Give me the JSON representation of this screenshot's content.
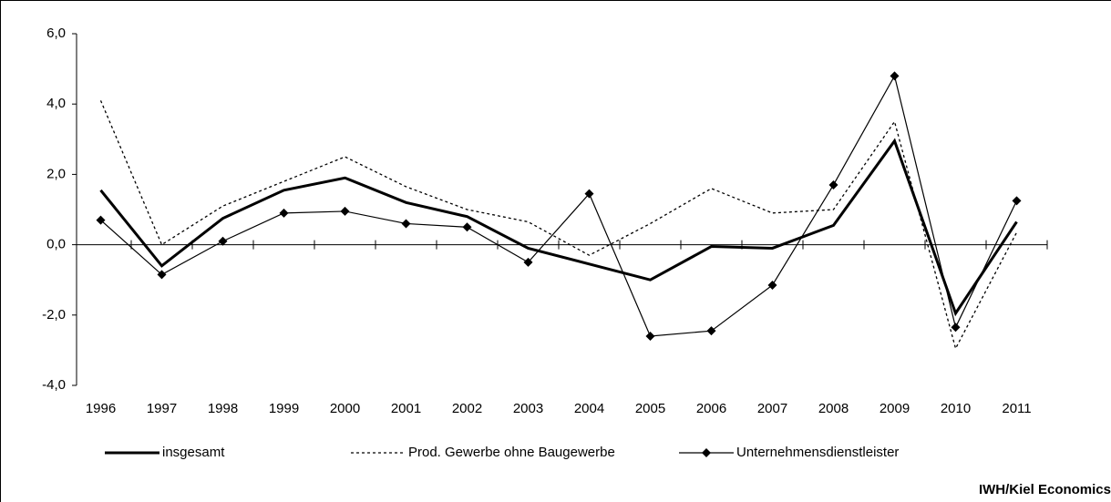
{
  "chart_data": {
    "type": "line",
    "categories": [
      "1996",
      "1997",
      "1998",
      "1999",
      "2000",
      "2001",
      "2002",
      "2003",
      "2004",
      "2005",
      "2006",
      "2007",
      "2008",
      "2009",
      "2010",
      "2011"
    ],
    "series": [
      {
        "name": "insgesamt",
        "color": "#000000",
        "values": [
          1.55,
          -0.6,
          0.75,
          1.55,
          1.9,
          1.2,
          0.8,
          -0.1,
          -0.55,
          -1.0,
          -0.05,
          -0.1,
          0.55,
          2.95,
          -1.95,
          0.65
        ]
      },
      {
        "name": "Prod. Gewerbe ohne Baugewerbe",
        "color": "#000000",
        "values": [
          4.1,
          0.0,
          1.1,
          1.8,
          2.5,
          1.65,
          1.0,
          0.65,
          -0.3,
          0.6,
          1.6,
          0.9,
          1.0,
          3.5,
          -2.95,
          0.35
        ]
      },
      {
        "name": "Unternehmensdienstleister",
        "color": "#000000",
        "values": [
          0.7,
          -0.85,
          0.1,
          0.9,
          0.95,
          0.6,
          0.5,
          -0.5,
          1.45,
          -2.6,
          -2.45,
          -1.15,
          1.7,
          4.8,
          -2.35,
          1.25
        ]
      }
    ],
    "ylim": [
      -4,
      6
    ],
    "yticks": [
      {
        "value": -4,
        "label": "-4,0"
      },
      {
        "value": -2,
        "label": "-2,0"
      },
      {
        "value": 0,
        "label": "0,0"
      },
      {
        "value": 2,
        "label": "2,0"
      },
      {
        "value": 4,
        "label": "4,0"
      },
      {
        "value": 6,
        "label": "6,0"
      }
    ],
    "source": "IWH/Kiel Economics"
  }
}
